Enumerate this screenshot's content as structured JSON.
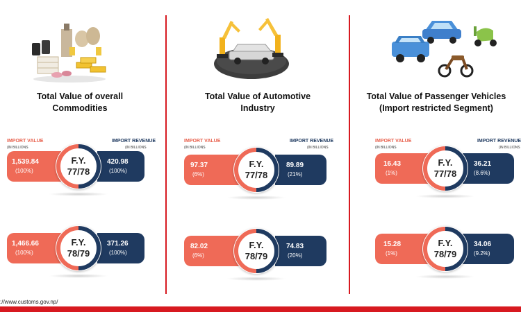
{
  "panels": [
    {
      "title_line1": "Total Value  of overall",
      "title_line2": "Commodities",
      "illustration": "commodities-illustration",
      "import_label": "IMPORT VALUE",
      "import_unit": "(IN BILLIONS",
      "revenue_label": "IMPORT REVENUE",
      "revenue_unit": "(IN BILLIONS",
      "rows": [
        {
          "fy_line1": "F.Y.",
          "fy_line2": "77/78",
          "import_value": "1,539.84",
          "import_pct": "(100%)",
          "revenue_value": "420.98",
          "revenue_pct": "(100%)"
        },
        {
          "fy_line1": "F.Y.",
          "fy_line2": "78/79",
          "import_value": "1,466.66",
          "import_pct": "(100%)",
          "revenue_value": "371.26",
          "revenue_pct": "(100%)"
        }
      ]
    },
    {
      "title_line1": "Total Value of Automotive",
      "title_line2": "Industry",
      "illustration": "robot-car-assembly-illustration",
      "import_label": "IMPORT VALUE",
      "import_unit": "(IN BILLIONS",
      "revenue_label": "IMPORT REVENUE",
      "revenue_unit": "(IN BILLIONS",
      "rows": [
        {
          "fy_line1": "F.Y.",
          "fy_line2": "77/78",
          "import_value": "97.37",
          "import_pct": "(6%)",
          "revenue_value": "89.89",
          "revenue_pct": "(21%)"
        },
        {
          "fy_line1": "F.Y.",
          "fy_line2": "78/79",
          "import_value": "82.02",
          "import_pct": "(6%)",
          "revenue_value": "74.83",
          "revenue_pct": "(20%)"
        }
      ]
    },
    {
      "title_line1": "Total Value of Passenger Vehicles",
      "title_line2": "(Import restricted Segment)",
      "illustration": "vehicles-illustration",
      "import_label": "IMPORT VALUE",
      "import_unit": "(IN BILLIONS",
      "revenue_label": "IMPORT REVENUE",
      "revenue_unit": "(IN BILLIONS",
      "rows": [
        {
          "fy_line1": "F.Y.",
          "fy_line2": "77/78",
          "import_value": "16.43",
          "import_pct": "(1%)",
          "revenue_value": "36.21",
          "revenue_pct": "(8.6%)"
        },
        {
          "fy_line1": "F.Y.",
          "fy_line2": "78/79",
          "import_value": "15.28",
          "import_pct": "(1%)",
          "revenue_value": "34.06",
          "revenue_pct": "(9.2%)"
        }
      ]
    }
  ],
  "footer": {
    "url": "://www.customs.gov.np/"
  },
  "colors": {
    "import": "#ef6a57",
    "revenue": "#1f3a60",
    "divider": "#d71920"
  }
}
